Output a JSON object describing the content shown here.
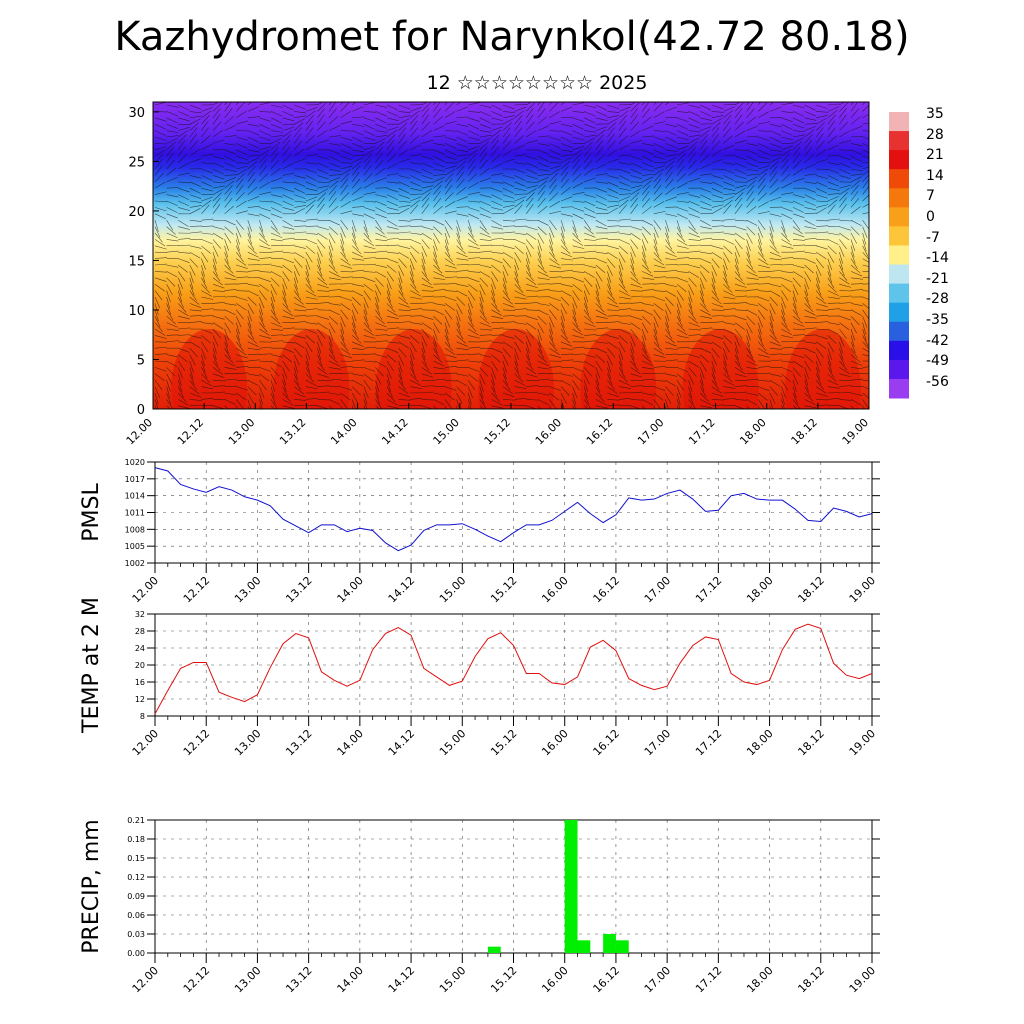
{
  "title": "Kazhydromet for Narynkol(42.72 80.18)",
  "subtitle": "12 ☆☆☆☆☆☆☆☆ 2025",
  "time_ticks": [
    "12.00",
    "12.12",
    "13.00",
    "13.12",
    "14.00",
    "14.12",
    "15.00",
    "15.12",
    "16.00",
    "16.12",
    "17.00",
    "17.12",
    "18.00",
    "18.12",
    "19.00"
  ],
  "colorbar": {
    "labels": [
      "35",
      "28",
      "21",
      "14",
      "7",
      "0",
      "-7",
      "-14",
      "-21",
      "-28",
      "-35",
      "-42",
      "-49",
      "-56"
    ],
    "colors": [
      "#f1b3b3",
      "#e83232",
      "#e41010",
      "#f04a08",
      "#f5780c",
      "#f9a01a",
      "#fdc63a",
      "#fff08a",
      "#bde6f0",
      "#5ec4ec",
      "#20a0e6",
      "#2860e0",
      "#2a10e8",
      "#5a18ec",
      "#9a3cf0"
    ]
  },
  "chart_data": [
    {
      "type": "heatmap",
      "title": "",
      "xlabel": "",
      "ylabel": "",
      "ylim": [
        0,
        31
      ],
      "yticks": [
        "0",
        "5",
        "10",
        "15",
        "20",
        "25",
        "30"
      ],
      "x_categories": [
        "12.00",
        "12.12",
        "13.00",
        "13.12",
        "14.00",
        "14.12",
        "15.00",
        "15.12",
        "16.00",
        "16.12",
        "17.00",
        "17.12",
        "18.00",
        "18.12",
        "19.00"
      ],
      "colorbar_range": [
        -56,
        35
      ],
      "overlay": "wind barbs"
    },
    {
      "type": "line",
      "ylabel": "PMSL",
      "ylim": [
        1002,
        1020
      ],
      "yticks": [
        "1002",
        "1005",
        "1008",
        "1011",
        "1014",
        "1017",
        "1020"
      ],
      "color": "#1010d0",
      "x": [
        0,
        3,
        6,
        9,
        12,
        15,
        18,
        21,
        24,
        27,
        30,
        33,
        36,
        39,
        42,
        45,
        48,
        51,
        54,
        57,
        60,
        63,
        66,
        69,
        72,
        75,
        78,
        81,
        84,
        87,
        90,
        93,
        96,
        99,
        102,
        105,
        108,
        111,
        114,
        117,
        120,
        123,
        126,
        129,
        132,
        135,
        138,
        141,
        144,
        147,
        150,
        153,
        156,
        159,
        162,
        165,
        168
      ],
      "values": [
        1019,
        1018.4,
        1016,
        1015.2,
        1014.6,
        1015.6,
        1015,
        1013.8,
        1013.2,
        1012.2,
        1009.8,
        1008.6,
        1007.4,
        1008.8,
        1008.8,
        1007.6,
        1008.2,
        1007.8,
        1005.6,
        1004.2,
        1005.2,
        1007.8,
        1008.8,
        1008.8,
        1009,
        1008,
        1006.8,
        1005.8,
        1007.4,
        1008.8,
        1008.8,
        1009.6,
        1011.2,
        1012.8,
        1010.8,
        1009.2,
        1010.6,
        1013.6,
        1013.2,
        1013.4,
        1014.4,
        1015,
        1013.4,
        1011.2,
        1011.4,
        1014,
        1014.4,
        1013.4,
        1013.2,
        1013.2,
        1011.6,
        1009.6,
        1009.4,
        1011.8,
        1011.2,
        1010.2,
        1010.8
      ]
    },
    {
      "type": "line",
      "ylabel": "TEMP at 2 M",
      "ylim": [
        8,
        32
      ],
      "yticks": [
        "8",
        "12",
        "16",
        "20",
        "24",
        "28",
        "32"
      ],
      "color": "#e01010",
      "x": [
        0,
        3,
        6,
        9,
        12,
        15,
        18,
        21,
        24,
        27,
        30,
        33,
        36,
        39,
        42,
        45,
        48,
        51,
        54,
        57,
        60,
        63,
        66,
        69,
        72,
        75,
        78,
        81,
        84,
        87,
        90,
        93,
        96,
        99,
        102,
        105,
        108,
        111,
        114,
        117,
        120,
        123,
        126,
        129,
        132,
        135,
        138,
        141,
        144,
        147,
        150,
        153,
        156,
        159,
        162,
        165,
        168
      ],
      "values": [
        8.5,
        14,
        19.2,
        20.6,
        20.6,
        13.6,
        12.4,
        11.4,
        13,
        19.4,
        25,
        27.4,
        26.4,
        18.4,
        16.4,
        15,
        16.4,
        23.6,
        27.4,
        28.8,
        27,
        19.2,
        17.2,
        15.2,
        16.2,
        22,
        26.2,
        27.6,
        24.6,
        18,
        18,
        15.8,
        15.4,
        17.2,
        24.2,
        25.8,
        23.4,
        16.8,
        15.2,
        14.2,
        15,
        20.4,
        24.6,
        26.6,
        26,
        18,
        16,
        15.4,
        16.4,
        23.6,
        28.4,
        29.6,
        28.6,
        20.4,
        17.6,
        16.8,
        18
      ]
    },
    {
      "type": "bar",
      "ylabel": "PRECIP, mm",
      "ylim": [
        0,
        0.21
      ],
      "yticks": [
        "0.00",
        "0.03",
        "0.06",
        "0.09",
        "0.12",
        "0.15",
        "0.18",
        "0.21"
      ],
      "color": "#00ee00",
      "x": [
        78,
        96,
        99,
        105,
        108
      ],
      "values": [
        0.01,
        0.21,
        0.02,
        0.03,
        0.02
      ]
    }
  ]
}
